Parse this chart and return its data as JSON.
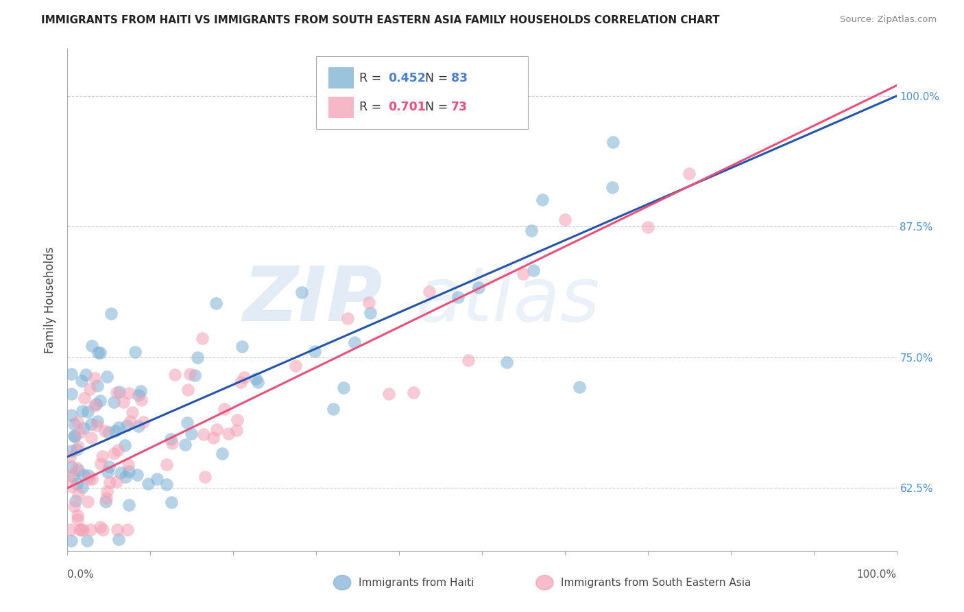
{
  "title": "IMMIGRANTS FROM HAITI VS IMMIGRANTS FROM SOUTH EASTERN ASIA FAMILY HOUSEHOLDS CORRELATION CHART",
  "source": "Source: ZipAtlas.com",
  "ylabel": "Family Households",
  "haiti_color": "#7bafd4",
  "sea_color": "#f4a0b5",
  "haiti_line_color": "#2255aa",
  "sea_line_color": "#e8507a",
  "ytick_vals": [
    0.625,
    0.75,
    0.875,
    1.0
  ],
  "ytick_labels": [
    "62.5%",
    "75.0%",
    "87.5%",
    "100.0%"
  ],
  "xtick_labels": [
    "0.0%",
    "100.0%"
  ],
  "xmin": 0.0,
  "xmax": 1.0,
  "ymin": 0.565,
  "ymax": 1.045,
  "haiti_R": 0.452,
  "haiti_N": 83,
  "sea_R": 0.701,
  "sea_N": 73,
  "haiti_line_x0": 0.0,
  "haiti_line_y0": 0.655,
  "haiti_line_x1": 1.0,
  "haiti_line_y1": 1.0,
  "sea_line_x0": 0.0,
  "sea_line_y0": 0.625,
  "sea_line_x1": 1.0,
  "sea_line_y1": 1.01,
  "watermark_zip": "ZIP",
  "watermark_atlas": "atlas",
  "legend_label1": "Immigrants from Haiti",
  "legend_label2": "Immigrants from South Eastern Asia"
}
